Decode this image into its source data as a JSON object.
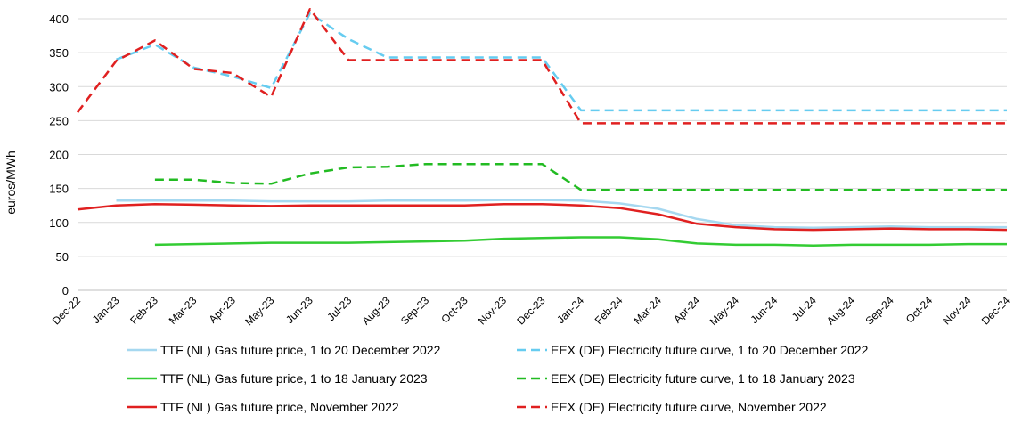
{
  "chart_data": {
    "type": "line",
    "ylabel": "euros/MWh",
    "xlabel": "",
    "ylim": [
      0,
      400
    ],
    "yticks": [
      "0",
      "50",
      "100",
      "150",
      "200",
      "250",
      "300",
      "350",
      "400"
    ],
    "categories": [
      "Dec-22",
      "Jan-23",
      "Feb-23",
      "Mar-23",
      "Apr-23",
      "May-23",
      "Jun-23",
      "Jul-23",
      "Aug-23",
      "Sep-23",
      "Oct-23",
      "Nov-23",
      "Dec-23",
      "Jan-24",
      "Feb-24",
      "Mar-24",
      "Apr-24",
      "May-24",
      "Jun-24",
      "Jul-24",
      "Aug-24",
      "Sep-24",
      "Oct-24",
      "Nov-24",
      "Dec-24"
    ],
    "grid": "horizontal",
    "legend_position": "bottom",
    "series": [
      {
        "name": "TTF (NL) Gas future price, 1 to 20 December 2022",
        "color": "#a6d8f0",
        "dash": "solid",
        "values": [
          null,
          132,
          132,
          132,
          132,
          131,
          131,
          131,
          132,
          132,
          132,
          133,
          133,
          132,
          128,
          120,
          105,
          96,
          93,
          92,
          93,
          94,
          93,
          93,
          93
        ]
      },
      {
        "name": "EEX (DE) Electricity future curve, 1 to 20 December 2022",
        "color": "#66ccf0",
        "dash": "dashed",
        "values": [
          null,
          340,
          362,
          328,
          315,
          298,
          408,
          370,
          343,
          343,
          343,
          343,
          343,
          265,
          265,
          265,
          265,
          265,
          265,
          265,
          265,
          265,
          265,
          265,
          265
        ]
      },
      {
        "name": "TTF (NL) Gas future price, 1 to 18 January 2023",
        "color": "#33cc33",
        "dash": "solid",
        "values": [
          null,
          null,
          67,
          68,
          69,
          70,
          70,
          70,
          71,
          72,
          73,
          76,
          77,
          78,
          78,
          75,
          69,
          67,
          67,
          66,
          67,
          67,
          67,
          68,
          68
        ]
      },
      {
        "name": "EEX (DE) Electricity future curve, 1 to 18 January 2023",
        "color": "#22bb22",
        "dash": "dashed",
        "values": [
          null,
          null,
          163,
          163,
          158,
          157,
          172,
          181,
          182,
          186,
          186,
          186,
          186,
          148,
          148,
          148,
          148,
          148,
          148,
          148,
          148,
          148,
          148,
          148,
          148
        ]
      },
      {
        "name": "TTF (NL) Gas future price, November 2022",
        "color": "#e02020",
        "dash": "solid",
        "values": [
          119,
          125,
          127,
          126,
          125,
          124,
          125,
          125,
          125,
          125,
          125,
          127,
          127,
          125,
          121,
          112,
          98,
          93,
          90,
          89,
          90,
          91,
          90,
          90,
          89
        ]
      },
      {
        "name": "EEX (DE) Electricity future curve, November 2022",
        "color": "#e02020",
        "dash": "dashed",
        "values": [
          262,
          338,
          368,
          326,
          320,
          285,
          414,
          339,
          339,
          339,
          339,
          339,
          339,
          246,
          246,
          246,
          246,
          246,
          246,
          246,
          246,
          246,
          246,
          246,
          246
        ]
      }
    ]
  }
}
